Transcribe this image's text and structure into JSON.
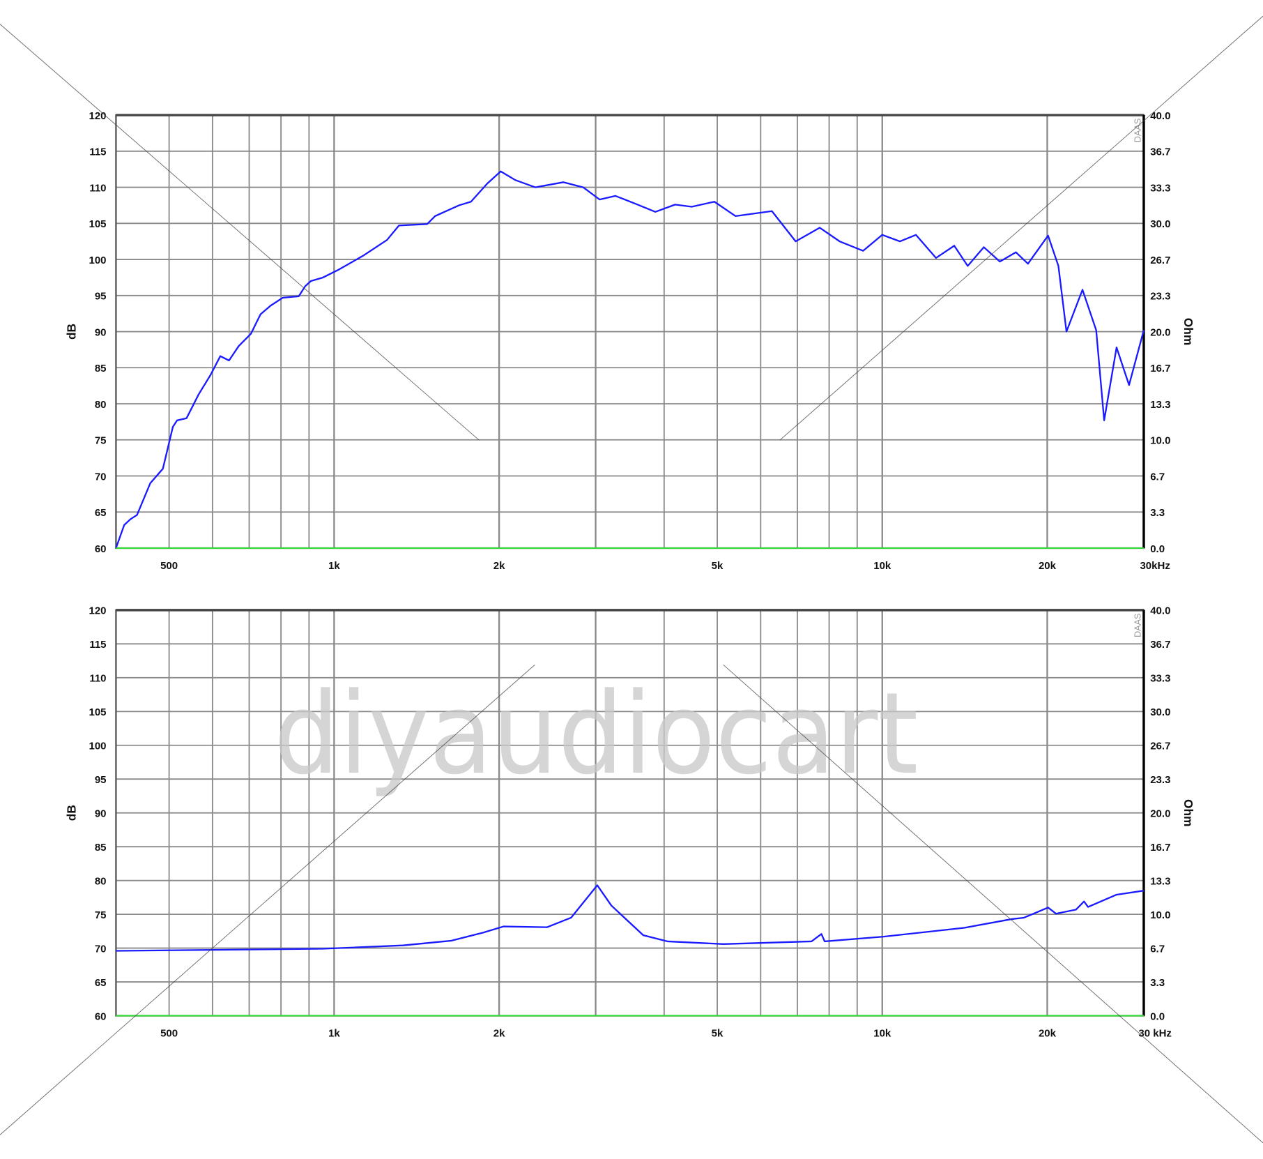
{
  "watermark": "diyaudiocart",
  "colors": {
    "curve": "#1a1aff",
    "baseline": "#33dd33",
    "grid": "#8a8a8a",
    "frame": "#555555"
  },
  "chart_data": [
    {
      "type": "line",
      "x_scale": "log",
      "xlim": [
        400,
        30000
      ],
      "ylim": [
        60,
        120
      ],
      "y2lim": [
        0,
        40
      ],
      "grid": true,
      "ylabel": "dB",
      "y2label": "Ohm",
      "corner_label": "DAAS",
      "x_ticks": [
        "500",
        "1k",
        "2k",
        "5k",
        "10k",
        "20k",
        "30kHz"
      ],
      "x_tick_values": [
        500,
        1000,
        2000,
        5000,
        10000,
        20000,
        30000
      ],
      "y_ticks": [
        "120",
        "115",
        "110",
        "105",
        "100",
        "95",
        "90",
        "85",
        "80",
        "75",
        "70",
        "65",
        "60"
      ],
      "y2_ticks": [
        "40.0",
        "36.7",
        "33.3",
        "30.0",
        "26.7",
        "23.3",
        "20.0",
        "16.7",
        "13.3",
        "10.0",
        "6.7",
        "3.3",
        "0.0"
      ],
      "series": [
        {
          "x": [
            400,
            414,
            425,
            437,
            462,
            487,
            508,
            517,
            538,
            566,
            595,
            620,
            643,
            670,
            705,
            734,
            766,
            806,
            862,
            886,
            907,
            954,
            1020,
            1129,
            1249,
            1313,
            1478,
            1528,
            1690,
            1777,
            1902,
            2013,
            2140,
            2328,
            2619,
            2847,
            3050,
            3260,
            3550,
            3855,
            4190,
            4490,
            4940,
            5400,
            6290,
            6950,
            7690,
            8360,
            9230,
            10000,
            10770,
            11520,
            12530,
            13530,
            14320,
            15320,
            16390,
            17530,
            18440,
            20070,
            20960,
            21680,
            23190,
            24560,
            25400,
            26760,
            28200,
            30000
          ],
          "y": [
            60,
            63.2,
            64,
            64.6,
            69,
            71,
            76.8,
            77.7,
            78,
            81.3,
            84,
            86.6,
            86,
            88,
            89.7,
            92.4,
            93.6,
            94.7,
            94.9,
            96.3,
            97,
            97.5,
            98.6,
            100.5,
            102.7,
            104.7,
            104.9,
            106,
            107.5,
            108,
            110.5,
            112.2,
            111,
            110,
            110.7,
            110,
            108.3,
            108.8,
            107.7,
            106.6,
            107.6,
            107.3,
            108,
            106,
            106.7,
            102.5,
            104.4,
            102.5,
            101.2,
            103.4,
            102.5,
            103.4,
            100.2,
            101.9,
            99.1,
            101.7,
            99.7,
            101,
            99.4,
            103.3,
            99.1,
            90,
            95.8,
            90.2,
            77.7,
            87.8,
            82.6,
            90.2
          ]
        },
        {
          "x": [
            400,
            30000
          ],
          "y": [
            60,
            60
          ]
        }
      ]
    },
    {
      "type": "line",
      "x_scale": "log",
      "xlim": [
        400,
        30000
      ],
      "ylim": [
        60,
        120
      ],
      "y2lim": [
        0,
        40
      ],
      "grid": true,
      "ylabel": "dB",
      "y2label": "Ohm",
      "corner_label": "DAAS",
      "x_ticks": [
        "500",
        "1k",
        "2k",
        "5k",
        "10k",
        "20k",
        "30 kHz"
      ],
      "x_tick_values": [
        500,
        1000,
        2000,
        5000,
        10000,
        20000,
        30000
      ],
      "y_ticks": [
        "120",
        "115",
        "110",
        "105",
        "100",
        "95",
        "90",
        "85",
        "80",
        "75",
        "70",
        "65",
        "60"
      ],
      "y2_ticks": [
        "40.0",
        "36.7",
        "33.3",
        "30.0",
        "26.7",
        "23.3",
        "20.0",
        "16.7",
        "13.3",
        "10.0",
        "6.7",
        "3.3",
        "0.0"
      ],
      "series": [
        {
          "x": [
            400,
            954,
            1336,
            1635,
            1870,
            2037,
            2447,
            2706,
            3020,
            3205,
            3664,
            4054,
            5130,
            7430,
            7745,
            7850,
            10060,
            14100,
            17240,
            18130,
            20070,
            20750,
            22570,
            23340,
            23740,
            26760,
            30000
          ],
          "y": [
            69.6,
            69.9,
            70.4,
            71.1,
            72.3,
            73.2,
            73.1,
            74.5,
            79.3,
            76.3,
            71.9,
            71,
            70.6,
            71,
            72.1,
            71,
            71.7,
            73,
            74.3,
            74.5,
            76,
            75.1,
            75.7,
            76.9,
            76.1,
            77.9,
            78.5
          ]
        },
        {
          "x": [
            400,
            30000
          ],
          "y": [
            60,
            60
          ]
        }
      ]
    }
  ]
}
